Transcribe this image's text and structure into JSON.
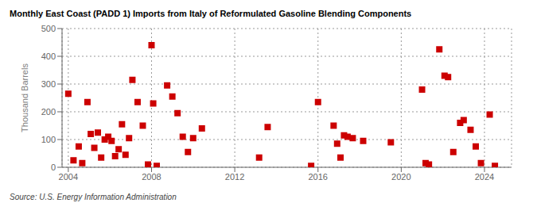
{
  "chart_data": {
    "type": "scatter",
    "title": "Monthly East Coast (PADD 1) Imports from Italy of Reformulated Gasoline Blending Components",
    "ylabel": "Thousand Barrels",
    "annotations": [
      "Source: U.S. Energy Information Administration"
    ],
    "color": "#cc0000",
    "marker": "square",
    "grid": true,
    "xlim": [
      2003.7,
      2025.3
    ],
    "ylim": [
      0,
      500
    ],
    "xticks": [
      2004,
      2008,
      2012,
      2016,
      2020,
      2024
    ],
    "yticks": [
      0,
      100,
      200,
      300,
      400,
      500
    ],
    "x": [
      2004.0,
      2004.25,
      2004.5,
      2004.67,
      2004.92,
      2005.08,
      2005.25,
      2005.42,
      2005.58,
      2005.75,
      2005.92,
      2006.08,
      2006.25,
      2006.42,
      2006.58,
      2006.75,
      2006.92,
      2007.08,
      2007.33,
      2007.58,
      2007.83,
      2008.0,
      2008.08,
      2008.25,
      2008.75,
      2009.0,
      2009.25,
      2009.5,
      2009.75,
      2010.0,
      2010.42,
      2013.17,
      2013.58,
      2015.67,
      2016.0,
      2016.75,
      2016.92,
      2017.08,
      2017.25,
      2017.42,
      2017.67,
      2018.17,
      2019.5,
      2021.0,
      2021.17,
      2021.33,
      2021.83,
      2022.08,
      2022.25,
      2022.5,
      2022.83,
      2023.0,
      2023.33,
      2023.58,
      2023.83,
      2024.25,
      2024.5
    ],
    "values": [
      265,
      25,
      75,
      15,
      235,
      120,
      70,
      125,
      35,
      100,
      110,
      95,
      40,
      65,
      155,
      45,
      105,
      315,
      235,
      150,
      10,
      440,
      230,
      5,
      295,
      255,
      195,
      110,
      55,
      105,
      140,
      35,
      145,
      5,
      235,
      150,
      85,
      35,
      115,
      110,
      105,
      95,
      90,
      280,
      15,
      10,
      425,
      330,
      325,
      55,
      160,
      170,
      135,
      75,
      15,
      190,
      5
    ]
  }
}
